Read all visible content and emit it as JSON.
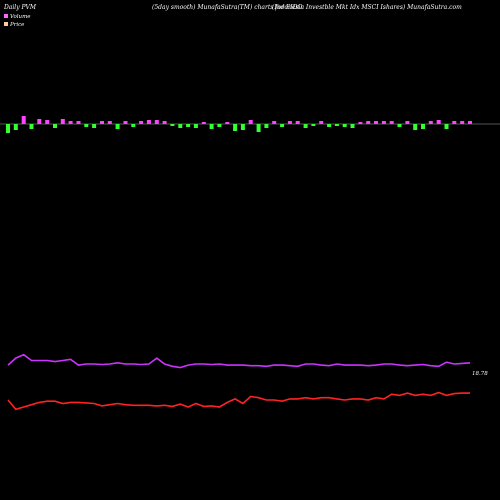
{
  "header": {
    "left": "Daily PVM",
    "center": "(5day smooth) MunafaSutra(TM) charts for EIDO",
    "right": "(Indonesia  Investble    Mkt Idx MSCI Ishares) MunafaSutra.com"
  },
  "legend": {
    "items": [
      {
        "label": "Volume",
        "color": "#ff66ff"
      },
      {
        "label": "Price",
        "color": "#ffcc99"
      }
    ]
  },
  "price_end_label": "18.78",
  "colors": {
    "background": "#000000",
    "up_bar": "#ff44ff",
    "down_bar": "#33ff33",
    "baseline": "#aaaaaa",
    "price_line": "#ff2222",
    "ma_line": "#cc33ff"
  },
  "chart_data": {
    "type": "line",
    "title": "",
    "x_count": 60,
    "price_series": [
      14.2,
      13.4,
      13.6,
      13.8,
      14.0,
      14.1,
      14.1,
      13.9,
      14.0,
      14.0,
      13.95,
      13.9,
      13.7,
      13.8,
      13.9,
      13.8,
      13.75,
      13.75,
      13.75,
      13.7,
      13.75,
      13.65,
      13.85,
      13.6,
      13.9,
      13.65,
      13.7,
      13.6,
      14.0,
      14.3,
      13.9,
      14.5,
      14.4,
      14.2,
      14.2,
      14.1,
      14.3,
      14.3,
      14.4,
      14.3,
      14.4,
      14.4,
      14.3,
      14.2,
      14.3,
      14.3,
      14.2,
      14.4,
      14.3,
      14.7,
      14.6,
      14.8,
      14.6,
      14.7,
      14.6,
      14.85,
      14.6,
      14.75,
      14.8,
      14.8
    ],
    "ma_series": [
      17.2,
      17.8,
      18.1,
      17.6,
      17.6,
      17.6,
      17.5,
      17.6,
      17.7,
      17.2,
      17.3,
      17.3,
      17.25,
      17.3,
      17.4,
      17.3,
      17.3,
      17.25,
      17.3,
      17.8,
      17.3,
      17.1,
      17.0,
      17.2,
      17.3,
      17.3,
      17.25,
      17.3,
      17.2,
      17.2,
      17.2,
      17.15,
      17.15,
      17.1,
      17.2,
      17.2,
      17.15,
      17.1,
      17.3,
      17.3,
      17.2,
      17.15,
      17.3,
      17.2,
      17.2,
      17.2,
      17.15,
      17.2,
      17.3,
      17.3,
      17.2,
      17.15,
      17.2,
      17.25,
      17.15,
      17.1,
      17.45,
      17.3,
      17.35,
      17.4
    ],
    "volume_bars": [
      -0.9,
      -0.6,
      0.8,
      -0.5,
      0.5,
      0.4,
      -0.4,
      0.5,
      0.3,
      0.3,
      -0.3,
      -0.4,
      0.3,
      0.3,
      -0.5,
      0.3,
      -0.3,
      0.3,
      0.4,
      0.4,
      0.3,
      -0.2,
      -0.4,
      -0.3,
      -0.4,
      0.2,
      -0.5,
      -0.3,
      0.2,
      -0.7,
      -0.6,
      0.4,
      -0.8,
      -0.4,
      0.3,
      -0.3,
      0.3,
      0.3,
      -0.4,
      -0.2,
      0.3,
      -0.3,
      -0.2,
      -0.3,
      -0.4,
      0.2,
      0.3,
      0.3,
      0.3,
      0.3,
      -0.3,
      0.3,
      -0.6,
      -0.5,
      0.3,
      0.4,
      -0.5,
      0.3,
      0.3,
      0.3
    ]
  }
}
